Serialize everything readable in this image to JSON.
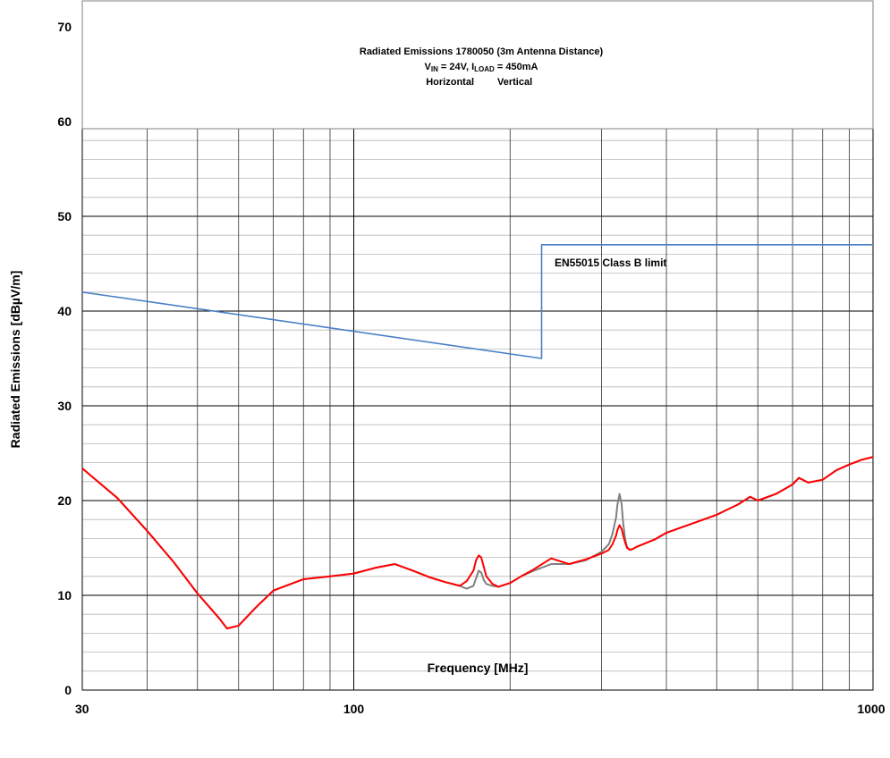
{
  "chart_data": {
    "type": "line",
    "title": "Radiated Emissions 1780050 (3m Antenna Distance)",
    "subtitle": {
      "v_label": "V",
      "v_sub": "IN",
      "v_value": " = 24V, I",
      "i_sub": "LOAD",
      "i_value": " = 450mA"
    },
    "xlabel": "Frequency [MHz]",
    "ylabel": "Radiated Emissions [dBµV/m]",
    "x_scale": "log",
    "xlim": [
      30,
      1000
    ],
    "ylim": [
      0,
      70
    ],
    "x_tick_labels": [
      "30",
      "100",
      "1000"
    ],
    "y_tick_labels": [
      "0",
      "10",
      "20",
      "30",
      "40",
      "50",
      "60",
      "70"
    ],
    "grid": true,
    "legend": {
      "placement": "top-center",
      "entries": [
        "Horizontal",
        "Vertical"
      ]
    },
    "colors": {
      "horizontal": "#ff0000",
      "vertical": "#808080",
      "limit": "#4a7fc8"
    },
    "limit_annotation": "EN55015 Class B limit",
    "series": [
      {
        "name": "Vertical",
        "x": [
          30,
          35,
          40,
          45,
          50,
          55,
          57,
          60,
          65,
          70,
          80,
          90,
          100,
          110,
          120,
          130,
          140,
          150,
          160,
          165,
          170,
          172,
          174,
          176,
          178,
          180,
          185,
          190,
          200,
          210,
          220,
          240,
          260,
          280,
          300,
          310,
          315,
          320,
          322,
          325,
          328,
          330,
          333,
          336,
          340,
          345,
          350,
          380,
          400,
          450,
          500,
          550,
          580,
          600,
          650,
          700,
          720,
          750,
          800,
          850,
          900,
          950,
          1000
        ],
        "values": [
          23.4,
          20.3,
          16.8,
          13.5,
          10.2,
          7.6,
          6.5,
          6.8,
          8.8,
          10.5,
          11.7,
          12.0,
          12.3,
          12.9,
          13.3,
          12.6,
          11.9,
          11.4,
          11.0,
          10.7,
          11.0,
          11.8,
          12.6,
          12.4,
          11.6,
          11.2,
          11.0,
          10.9,
          11.3,
          12.0,
          12.5,
          13.3,
          13.3,
          13.7,
          14.6,
          15.4,
          16.5,
          18.2,
          19.6,
          20.7,
          19.6,
          17.8,
          16.0,
          15.1,
          14.8,
          14.9,
          15.1,
          15.9,
          16.6,
          17.6,
          18.5,
          19.6,
          20.4,
          20.0,
          20.7,
          21.7,
          22.4,
          21.9,
          22.2,
          23.2,
          23.8,
          24.3,
          24.6
        ]
      },
      {
        "name": "Horizontal",
        "x": [
          30,
          35,
          40,
          45,
          50,
          55,
          57,
          60,
          65,
          70,
          80,
          90,
          100,
          110,
          120,
          130,
          140,
          150,
          160,
          165,
          170,
          172,
          174,
          176,
          178,
          180,
          185,
          190,
          200,
          210,
          220,
          240,
          260,
          280,
          300,
          310,
          315,
          320,
          322,
          325,
          328,
          330,
          333,
          336,
          340,
          345,
          350,
          380,
          400,
          450,
          500,
          550,
          580,
          600,
          650,
          700,
          720,
          750,
          800,
          850,
          900,
          950,
          1000
        ],
        "values": [
          23.4,
          20.3,
          16.8,
          13.5,
          10.2,
          7.6,
          6.5,
          6.8,
          8.8,
          10.5,
          11.7,
          12.0,
          12.3,
          12.9,
          13.3,
          12.6,
          11.9,
          11.4,
          11.0,
          11.5,
          12.6,
          13.7,
          14.2,
          14.0,
          13.0,
          12.0,
          11.2,
          10.9,
          11.3,
          12.0,
          12.6,
          13.9,
          13.3,
          13.8,
          14.4,
          14.8,
          15.4,
          16.3,
          16.9,
          17.4,
          17.0,
          16.4,
          15.6,
          15.0,
          14.8,
          14.9,
          15.1,
          15.9,
          16.6,
          17.6,
          18.5,
          19.6,
          20.4,
          20.0,
          20.7,
          21.7,
          22.4,
          21.9,
          22.2,
          23.2,
          23.8,
          24.3,
          24.6
        ]
      },
      {
        "name": "EN55015 Class B limit",
        "x": [
          30,
          230,
          230,
          1000
        ],
        "values": [
          42,
          35,
          47,
          47
        ]
      }
    ]
  }
}
